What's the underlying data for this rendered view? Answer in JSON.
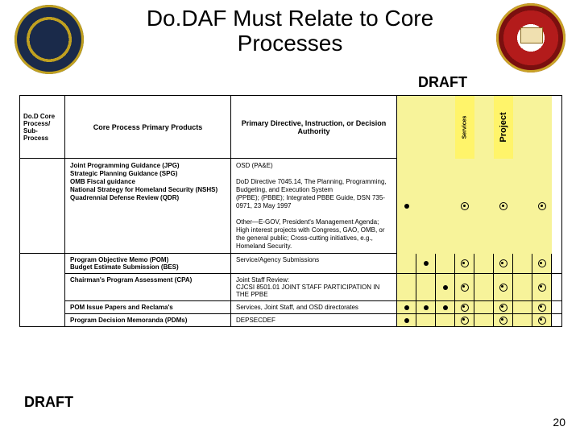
{
  "title_line1": "Do.DAF Must Relate to Core",
  "title_line2": "Processes",
  "draft": "DRAFT",
  "page": "20",
  "colors": {
    "yellow": "#f7f39a",
    "yellow_hl": "#fff46a",
    "border": "#000000",
    "bg": "#ffffff"
  },
  "headers": {
    "a": "Do.D Core Process/ Sub-Process",
    "b": "Core Process Primary Products",
    "c": "Primary Directive, Instruction, or Decision Authority",
    "vcols": [
      {
        "label": "",
        "hl": false
      },
      {
        "label": "",
        "hl": false
      },
      {
        "label": "",
        "hl": false
      },
      {
        "label": "Services",
        "hl": true
      },
      {
        "label": "",
        "hl": false
      },
      {
        "label": "Project",
        "hl": true,
        "proj": true
      },
      {
        "label": "",
        "hl": false
      },
      {
        "label": "",
        "hl": false
      }
    ]
  },
  "section1": {
    "sidebar": "",
    "products": "Joint Programming Guidance (JPG)\nStrategic Planning Guidance (SPG)\nOMB Fiscal guidance\nNational Strategy for Homeland Security (NSHS)\nQuadrennial Defense Review (QDR)",
    "authority": "OSD (PA&E)\n\nDoD Directive 7045.14, The Planning, Programming, Budgeting, and Execution System\n(PPBE); (PBBE); Integrated PBBE Guide, DSN 735-0971, 23 May 1997\n\nOther—E-GOV, President's Management Agenda; High interest projects with Congress, GAO, OMB, or the general public; Cross-cutting initiatives, e.g., Homeland Security.",
    "marks": [
      "dot",
      "",
      "",
      "dotr",
      "",
      "dotr",
      "",
      "dotr"
    ]
  },
  "section2": {
    "sidebar": "",
    "rows": [
      {
        "b": "Program Objective Memo (POM)\nBudget Estimate Submission (BES)",
        "c": "Service/Agency Submissions",
        "v": [
          "",
          "dot",
          "",
          "dotr",
          "",
          "dotr",
          "",
          "dotr"
        ]
      },
      {
        "b": "Chairman's Program Assessment (CPA)",
        "c": "Joint Staff Review:\nCJCSI 8501.01 JOINT STAFF PARTICIPATION IN THE PPBE",
        "v": [
          "",
          "",
          "dot",
          "dotr",
          "",
          "dotr",
          "",
          "dotr"
        ]
      },
      {
        "b": "POM Issue Papers and Reclama's",
        "c": "Services, Joint Staff, and OSD directorates",
        "v": [
          "dot",
          "dot",
          "dot",
          "dotr",
          "",
          "dotr",
          "",
          "dotr"
        ]
      },
      {
        "b": "Program Decision Memoranda (PDMs)",
        "c": "DEPSECDEF",
        "v": [
          "dot",
          "",
          "",
          "dotr",
          "",
          "dotr",
          "",
          "dotr"
        ]
      }
    ]
  }
}
